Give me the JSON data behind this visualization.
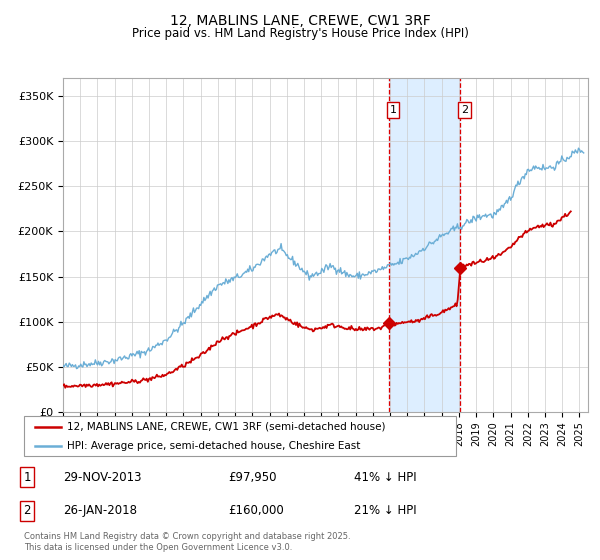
{
  "title": "12, MABLINS LANE, CREWE, CW1 3RF",
  "subtitle": "Price paid vs. HM Land Registry's House Price Index (HPI)",
  "hpi_color": "#6baed6",
  "price_color": "#cc0000",
  "sale1_t": 2013.916,
  "sale1_price": 97950,
  "sale2_t": 2018.083,
  "sale2_price": 160000,
  "legend_line1": "12, MABLINS LANE, CREWE, CW1 3RF (semi-detached house)",
  "legend_line2": "HPI: Average price, semi-detached house, Cheshire East",
  "footer": "Contains HM Land Registry data © Crown copyright and database right 2025.\nThis data is licensed under the Open Government Licence v3.0.",
  "ylim": [
    0,
    370000
  ],
  "yticks": [
    0,
    50000,
    100000,
    150000,
    200000,
    250000,
    300000,
    350000
  ],
  "ytick_labels": [
    "£0",
    "£50K",
    "£100K",
    "£150K",
    "£200K",
    "£250K",
    "£300K",
    "£350K"
  ],
  "xlim_start": 1995,
  "xlim_end": 2025.5,
  "background_color": "#ffffff",
  "shaded_color": "#ddeeff",
  "grid_color": "#cccccc"
}
